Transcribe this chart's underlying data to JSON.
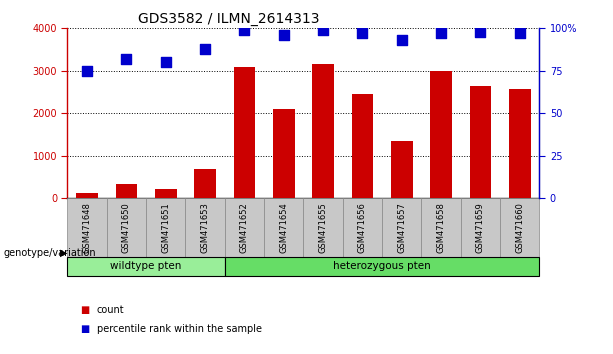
{
  "title": "GDS3582 / ILMN_2614313",
  "categories": [
    "GSM471648",
    "GSM471650",
    "GSM471651",
    "GSM471653",
    "GSM471652",
    "GSM471654",
    "GSM471655",
    "GSM471656",
    "GSM471657",
    "GSM471658",
    "GSM471659",
    "GSM471660"
  ],
  "counts": [
    130,
    340,
    220,
    700,
    3100,
    2100,
    3150,
    2450,
    1350,
    3000,
    2650,
    2580
  ],
  "percentiles": [
    75,
    82,
    80,
    88,
    99,
    96,
    99,
    97,
    93,
    97,
    98,
    97
  ],
  "bar_color": "#cc0000",
  "dot_color": "#0000cc",
  "wildtype_indices": [
    0,
    1,
    2,
    3
  ],
  "heterozygous_indices": [
    4,
    5,
    6,
    7,
    8,
    9,
    10,
    11
  ],
  "wildtype_label": "wildtype pten",
  "heterozygous_label": "heterozygous pten",
  "genotype_label": "genotype/variation",
  "legend_count": "count",
  "legend_percentile": "percentile rank within the sample",
  "ylim_left": [
    0,
    4000
  ],
  "ylim_right": [
    0,
    100
  ],
  "yticks_left": [
    0,
    1000,
    2000,
    3000,
    4000
  ],
  "yticks_right": [
    0,
    25,
    50,
    75,
    100
  ],
  "xticklabel_bg": "#c8c8c8",
  "wildtype_bg": "#99ee99",
  "heterozygous_bg": "#66dd66",
  "bar_width": 0.55,
  "dot_size": 55,
  "title_fontsize": 10,
  "tick_fontsize": 7,
  "left_tick_color": "#cc0000",
  "right_tick_color": "#0000cc"
}
